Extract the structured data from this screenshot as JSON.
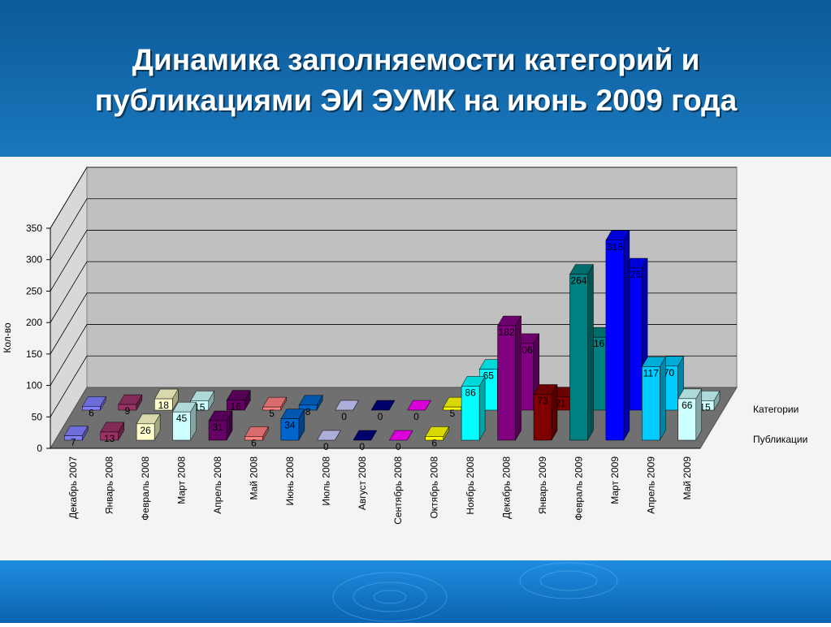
{
  "chart_data": {
    "type": "bar3d",
    "title": [
      "Динамика заполняемости категорий и",
      "публикациями ЭИ ЭУМК на июнь 2009 года"
    ],
    "y_label": "Кол-во",
    "categories": [
      "Декабрь 2007",
      "Январь 2008",
      "Февраль 2008",
      "Март 2008",
      "Апрель 2008",
      "Май 2008",
      "Июнь 2008",
      "Июль 2008",
      "Август 2008",
      "Сентябрь 2008",
      "Октябрь 2008",
      "Ноябрь 2008",
      "Декабрь 2008",
      "Январь 2009",
      "Февраль 2009",
      "Март 2009",
      "Апрель 2009",
      "Май 2009"
    ],
    "colors": [
      "#8080ff",
      "#993366",
      "#ffffcc",
      "#ccffff",
      "#660066",
      "#ff8080",
      "#0066cc",
      "#ccccff",
      "#000080",
      "#ff00ff",
      "#ffff00",
      "#00ffff",
      "#800080",
      "#800000",
      "#008080",
      "#0000ff",
      "#00ccff",
      "#ccffff"
    ],
    "series": [
      {
        "name": "Категории",
        "values": [
          6,
          9,
          18,
          15,
          16,
          5,
          8,
          0,
          0,
          0,
          5,
          65,
          106,
          21,
          116,
          226,
          70,
          15
        ]
      },
      {
        "name": "Публикации",
        "values": [
          7,
          13,
          26,
          45,
          31,
          6,
          34,
          0,
          0,
          0,
          6,
          86,
          182,
          73,
          264,
          318,
          117,
          66
        ]
      }
    ],
    "ylim": [
      0,
      350
    ],
    "yticks": [
      0,
      50,
      100,
      150,
      200,
      250,
      300,
      350
    ],
    "grid": true
  }
}
